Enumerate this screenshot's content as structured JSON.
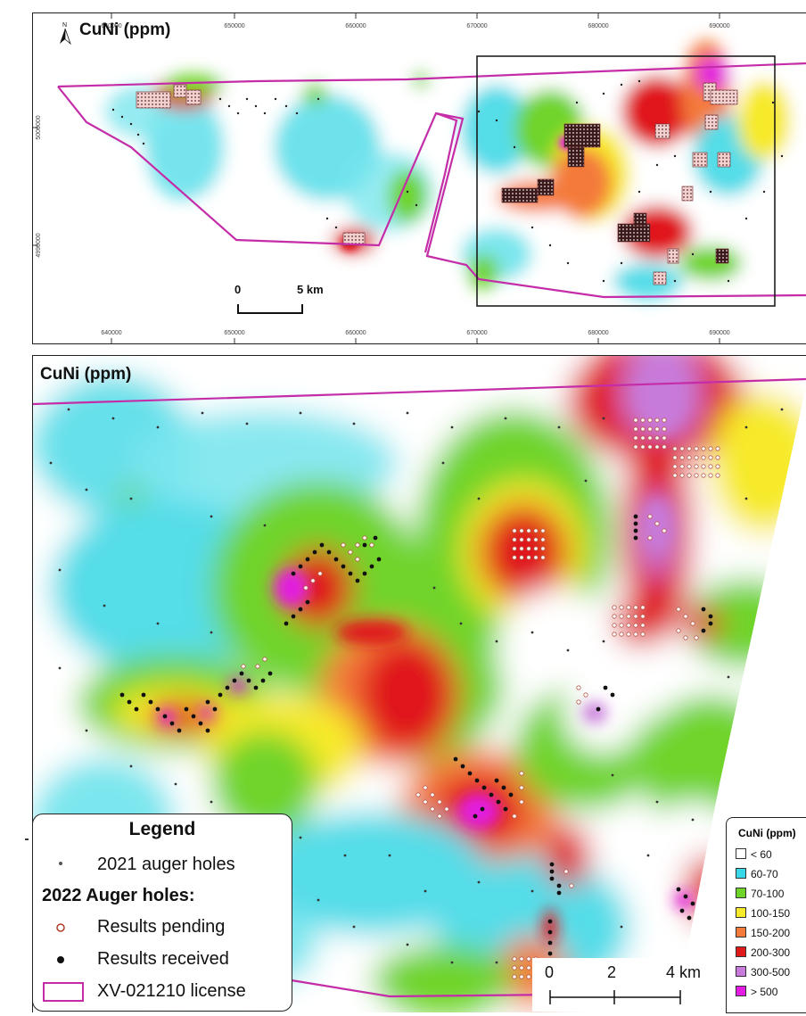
{
  "top_map": {
    "title": "CuNi (ppm)",
    "north_label": "N",
    "x_ticks": [
      "640000",
      "650000",
      "660000",
      "670000",
      "680000",
      "690000"
    ],
    "y_ticks": [
      "5000000",
      "4990000"
    ],
    "scale": {
      "start": "0",
      "end": "5 km"
    }
  },
  "bottom_map": {
    "title": "CuNi (ppm)"
  },
  "legend": {
    "title": "Legend",
    "items_2021": "2021 auger holes",
    "subtitle_2022": "2022 Auger holes:",
    "pending": "Results pending",
    "received": "Results received",
    "license": "XV-021210 license"
  },
  "scale_bar": {
    "labels": [
      "0",
      "2",
      "4 km"
    ]
  },
  "ppm_legend": {
    "title": "CuNi (ppm)",
    "classes": [
      {
        "label": "< 60",
        "color": "#ffffff"
      },
      {
        "label": "60-70",
        "color": "#38d8e8"
      },
      {
        "label": "70-100",
        "color": "#6fd42a"
      },
      {
        "label": "100-150",
        "color": "#f7ea2a"
      },
      {
        "label": "150-200",
        "color": "#f47a3a"
      },
      {
        "label": "200-300",
        "color": "#e0191b"
      },
      {
        "label": "300-500",
        "color": "#c77ad9"
      },
      {
        "label": "> 500",
        "color": "#e21ce0"
      }
    ]
  },
  "colors": {
    "license": "#c42ca8",
    "frame": "#111111"
  }
}
